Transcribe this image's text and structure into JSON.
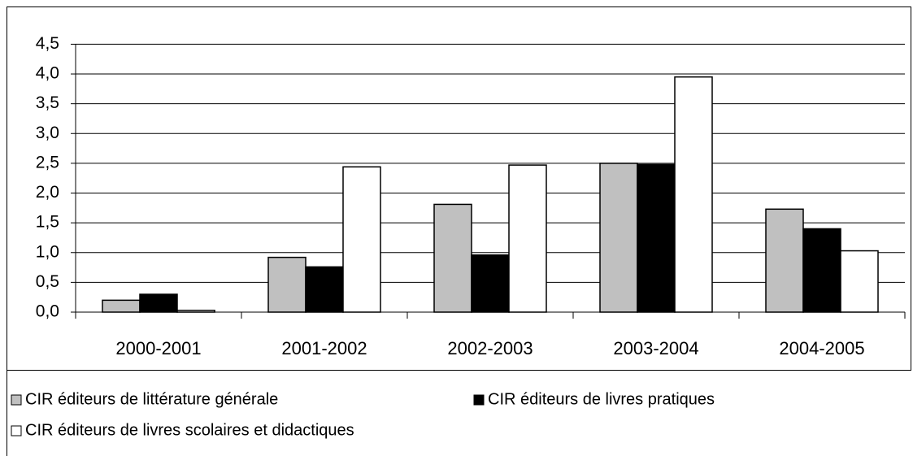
{
  "chart_data": {
    "type": "bar",
    "categories": [
      "2000-2001",
      "2001-2002",
      "2002-2003",
      "2003-2004",
      "2004-2005"
    ],
    "series": [
      {
        "name": "CIR éditeurs de littérature générale",
        "color": "#c0c0c0",
        "values": [
          0.2,
          0.92,
          1.81,
          2.5,
          1.73
        ]
      },
      {
        "name": "CIR éditeurs de livres pratiques",
        "color": "#000000",
        "values": [
          0.3,
          0.76,
          0.96,
          2.48,
          1.4
        ]
      },
      {
        "name": "CIR éditeurs de livres scolaires et didactiques",
        "color": "#ffffff",
        "values": [
          0.03,
          2.44,
          2.47,
          3.95,
          1.03
        ]
      }
    ],
    "ylim": [
      0,
      4.5
    ],
    "yticks": [
      {
        "value": 0,
        "label": "0,0"
      },
      {
        "value": 0.5,
        "label": "0,5"
      },
      {
        "value": 1,
        "label": "1,0"
      },
      {
        "value": 1.5,
        "label": "1,5"
      },
      {
        "value": 2,
        "label": "2,0"
      },
      {
        "value": 2.5,
        "label": "2,5"
      },
      {
        "value": 3,
        "label": "3,0"
      },
      {
        "value": 3.5,
        "label": "3,5"
      },
      {
        "value": 4,
        "label": "4,0"
      },
      {
        "value": 4.5,
        "label": "4,5"
      }
    ],
    "grid": true
  }
}
